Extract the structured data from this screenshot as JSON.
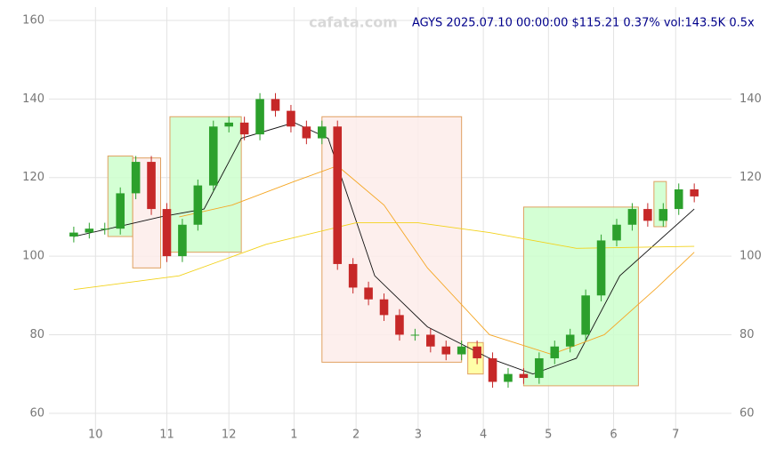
{
  "chart_data": {
    "type": "candlestick",
    "title": "AGYS 2025.07.10 00:00:00 $115.21 0.37% vol:143.5K 0.5x",
    "watermark": "cafata.com",
    "x": [
      -7,
      -2,
      3,
      8,
      13,
      18,
      23,
      28,
      33,
      38,
      43,
      48,
      53,
      58,
      63,
      68,
      73,
      78,
      83,
      88,
      93,
      98,
      103,
      108,
      113,
      118,
      123,
      128,
      133,
      138,
      143,
      148,
      153,
      158,
      163,
      168,
      173,
      178,
      183,
      188,
      193
    ],
    "open": [
      105,
      106,
      107,
      107,
      116,
      124,
      112,
      100,
      108,
      118,
      133,
      134,
      131,
      140,
      137,
      133,
      130,
      133,
      98,
      92,
      89,
      85,
      80,
      80,
      77,
      75,
      77,
      74,
      68,
      70,
      69,
      74,
      77,
      80,
      90,
      104,
      108,
      112,
      109,
      112,
      117
    ],
    "high": [
      107.5,
      108.5,
      108.5,
      117.5,
      125.5,
      125.5,
      113.5,
      109.5,
      119.5,
      134.5,
      135.5,
      135.5,
      141.5,
      141.5,
      138.5,
      134.5,
      134.5,
      134.5,
      99.5,
      93.5,
      90.5,
      86.5,
      81.5,
      81.5,
      78.5,
      78.5,
      78.5,
      75.5,
      71.5,
      71.5,
      75.5,
      78.5,
      81.5,
      91.5,
      105.5,
      109.5,
      113.5,
      113.5,
      113.5,
      118.5,
      118.5
    ],
    "low": [
      103.5,
      104.5,
      105.5,
      105.5,
      114.5,
      110.5,
      98.5,
      98.5,
      106.5,
      116.5,
      131.5,
      129.5,
      129.5,
      135.5,
      131.5,
      128.5,
      128.5,
      96.5,
      90.5,
      87.5,
      83.5,
      78.5,
      78.5,
      75.5,
      73.5,
      73.5,
      72.5,
      66.5,
      66.5,
      67.5,
      67.5,
      72.5,
      75.5,
      78.5,
      88.5,
      102.5,
      106.5,
      107.5,
      107.5,
      110.5,
      113.71
    ],
    "close": [
      106,
      107,
      107,
      116,
      124,
      112,
      100,
      108,
      118,
      133,
      134,
      131,
      140,
      137,
      133,
      130,
      133,
      98,
      92,
      89,
      85,
      80,
      80,
      77,
      75,
      77,
      74,
      68,
      70,
      69,
      74,
      77,
      80,
      90,
      104,
      108,
      112,
      109,
      112,
      117,
      115.21
    ],
    "up_color": "#2ca02c",
    "down_color": "#c62828",
    "overlays": [
      {
        "color": "#111111",
        "x": [
          -7,
          10,
          21,
          35,
          47,
          64,
          75,
          90,
          107,
          127,
          141,
          155,
          169,
          193
        ],
        "values": [
          105,
          108,
          110,
          112,
          130,
          134,
          130,
          95,
          82,
          74,
          70,
          74,
          95,
          112
        ]
      },
      {
        "color": "#f5a623",
        "x": [
          27,
          44,
          64,
          78,
          93,
          107,
          127,
          147,
          164,
          181,
          193
        ],
        "values": [
          110,
          113,
          119,
          123,
          113,
          97,
          80,
          75,
          80,
          92,
          101
        ]
      },
      {
        "color": "#f2d21b",
        "x": [
          -7,
          27,
          55,
          84,
          104,
          127,
          155,
          193
        ],
        "values": [
          91.5,
          95,
          103,
          108.5,
          108.5,
          106,
          102,
          102.5
        ]
      }
    ],
    "zones": [
      {
        "x": [
          4,
          12
        ],
        "y": [
          105,
          125.5
        ],
        "color": "#ccffcc"
      },
      {
        "x": [
          12,
          21
        ],
        "y": [
          97,
          125
        ],
        "color": "#fdecea"
      },
      {
        "x": [
          24,
          47
        ],
        "y": [
          101,
          135.5
        ],
        "color": "#ccffcc"
      },
      {
        "x": [
          73,
          118
        ],
        "y": [
          73,
          135.5
        ],
        "color": "#fdecea"
      },
      {
        "x": [
          120,
          125
        ],
        "y": [
          70,
          78
        ],
        "color": "#ffff99"
      },
      {
        "x": [
          138,
          175
        ],
        "y": [
          67,
          112.5
        ],
        "color": "#ccffcc"
      },
      {
        "x": [
          180,
          184
        ],
        "y": [
          107.5,
          119
        ],
        "color": "#ccffcc"
      }
    ],
    "xlim": [
      -15,
      205
    ],
    "xticks": [
      {
        "value": 0,
        "label": "10"
      },
      {
        "value": 23,
        "label": "11"
      },
      {
        "value": 43,
        "label": "12"
      },
      {
        "value": 64,
        "label": "1"
      },
      {
        "value": 84,
        "label": "2"
      },
      {
        "value": 104,
        "label": "3"
      },
      {
        "value": 125,
        "label": "4"
      },
      {
        "value": 146,
        "label": "5"
      },
      {
        "value": 167,
        "label": "6"
      },
      {
        "value": 187,
        "label": "7"
      }
    ],
    "ylim": [
      54.3,
      163.4
    ],
    "yticks": [
      60,
      80,
      100,
      120,
      140,
      160
    ],
    "y2lim": [
      54.3,
      163.4
    ],
    "y2ticks": [
      60,
      80,
      100,
      120,
      140
    ],
    "grid": true
  }
}
